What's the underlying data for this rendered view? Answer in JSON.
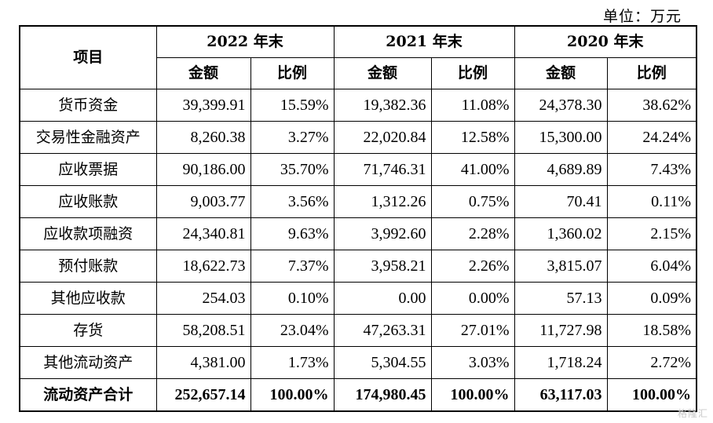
{
  "unit_label": "单位：万元",
  "header": {
    "item_label": "项目",
    "years": [
      "2022 年末",
      "2021 年末",
      "2020 年末"
    ],
    "amount_label": "金额",
    "ratio_label": "比例"
  },
  "rows": [
    {
      "item": "货币资金",
      "v": [
        "39,399.91",
        "15.59%",
        "19,382.36",
        "11.08%",
        "24,378.30",
        "38.62%"
      ]
    },
    {
      "item": "交易性金融资产",
      "v": [
        "8,260.38",
        "3.27%",
        "22,020.84",
        "12.58%",
        "15,300.00",
        "24.24%"
      ]
    },
    {
      "item": "应收票据",
      "v": [
        "90,186.00",
        "35.70%",
        "71,746.31",
        "41.00%",
        "4,689.89",
        "7.43%"
      ]
    },
    {
      "item": "应收账款",
      "v": [
        "9,003.77",
        "3.56%",
        "1,312.26",
        "0.75%",
        "70.41",
        "0.11%"
      ]
    },
    {
      "item": "应收款项融资",
      "v": [
        "24,340.81",
        "9.63%",
        "3,992.60",
        "2.28%",
        "1,360.02",
        "2.15%"
      ]
    },
    {
      "item": "预付账款",
      "v": [
        "18,622.73",
        "7.37%",
        "3,958.21",
        "2.26%",
        "3,815.07",
        "6.04%"
      ]
    },
    {
      "item": "其他应收款",
      "v": [
        "254.03",
        "0.10%",
        "0.00",
        "0.00%",
        "57.13",
        "0.09%"
      ]
    },
    {
      "item": "存货",
      "v": [
        "58,208.51",
        "23.04%",
        "47,263.31",
        "27.01%",
        "11,727.98",
        "18.58%"
      ]
    },
    {
      "item": "其他流动资产",
      "v": [
        "4,381.00",
        "1.73%",
        "5,304.55",
        "3.03%",
        "1,718.24",
        "2.72%"
      ]
    }
  ],
  "total": {
    "item": "流动资产合计",
    "v": [
      "252,657.14",
      "100.00%",
      "174,980.45",
      "100.00%",
      "63,117.03",
      "100.00%"
    ]
  },
  "watermark": "格隆汇"
}
